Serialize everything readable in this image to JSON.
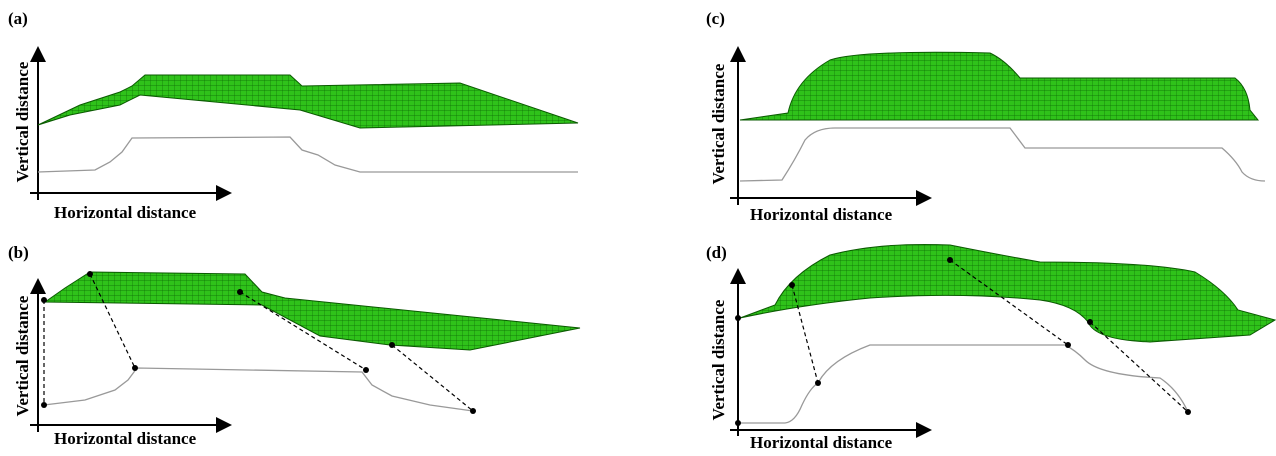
{
  "panels": [
    {
      "label": "(a)",
      "y_axis": "Vertical distance",
      "x_axis": "Horizontal distance"
    },
    {
      "label": "(b)",
      "y_axis": "Vertical distance",
      "x_axis": "Horizontal distance"
    },
    {
      "label": "(c)",
      "y_axis": "Vertical distance",
      "x_axis": "Horizontal distance"
    },
    {
      "label": "(d)",
      "y_axis": "Vertical distance",
      "x_axis": "Horizontal distance"
    }
  ]
}
